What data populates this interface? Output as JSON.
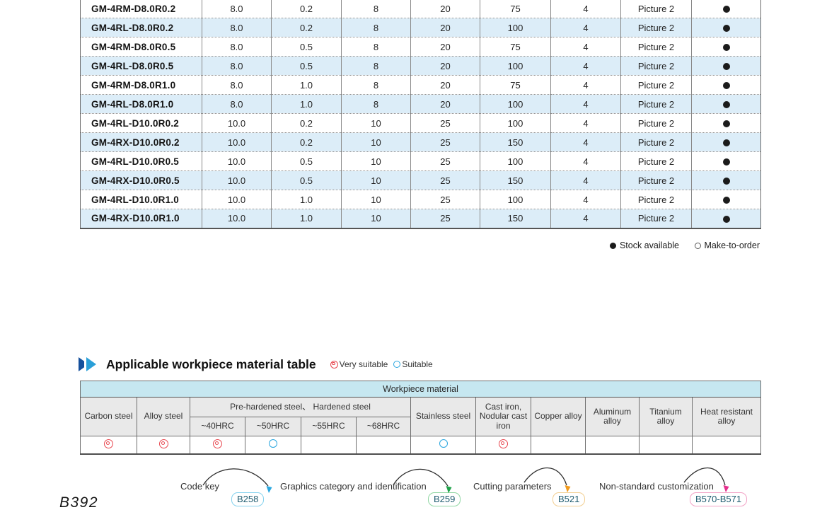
{
  "page_number": "B392",
  "product_table": {
    "rows": [
      {
        "model": "GM-4RM-D8.0R0.2",
        "values": [
          "8.0",
          "0.2",
          "8",
          "20",
          "75",
          "4",
          "Picture 2"
        ],
        "stock": "available"
      },
      {
        "model": "GM-4RL-D8.0R0.2",
        "values": [
          "8.0",
          "0.2",
          "8",
          "20",
          "100",
          "4",
          "Picture 2"
        ],
        "stock": "available"
      },
      {
        "model": "GM-4RM-D8.0R0.5",
        "values": [
          "8.0",
          "0.5",
          "8",
          "20",
          "75",
          "4",
          "Picture 2"
        ],
        "stock": "available"
      },
      {
        "model": "GM-4RL-D8.0R0.5",
        "values": [
          "8.0",
          "0.5",
          "8",
          "20",
          "100",
          "4",
          "Picture 2"
        ],
        "stock": "available"
      },
      {
        "model": "GM-4RM-D8.0R1.0",
        "values": [
          "8.0",
          "1.0",
          "8",
          "20",
          "75",
          "4",
          "Picture 2"
        ],
        "stock": "available"
      },
      {
        "model": "GM-4RL-D8.0R1.0",
        "values": [
          "8.0",
          "1.0",
          "8",
          "20",
          "100",
          "4",
          "Picture 2"
        ],
        "stock": "available"
      },
      {
        "model": "GM-4RL-D10.0R0.2",
        "values": [
          "10.0",
          "0.2",
          "10",
          "25",
          "100",
          "4",
          "Picture 2"
        ],
        "stock": "available"
      },
      {
        "model": "GM-4RX-D10.0R0.2",
        "values": [
          "10.0",
          "0.2",
          "10",
          "25",
          "150",
          "4",
          "Picture 2"
        ],
        "stock": "available"
      },
      {
        "model": "GM-4RL-D10.0R0.5",
        "values": [
          "10.0",
          "0.5",
          "10",
          "25",
          "100",
          "4",
          "Picture 2"
        ],
        "stock": "available"
      },
      {
        "model": "GM-4RX-D10.0R0.5",
        "values": [
          "10.0",
          "0.5",
          "10",
          "25",
          "150",
          "4",
          "Picture 2"
        ],
        "stock": "available"
      },
      {
        "model": "GM-4RL-D10.0R1.0",
        "values": [
          "10.0",
          "1.0",
          "10",
          "25",
          "100",
          "4",
          "Picture 2"
        ],
        "stock": "available"
      },
      {
        "model": "GM-4RX-D10.0R1.0",
        "values": [
          "10.0",
          "1.0",
          "10",
          "25",
          "150",
          "4",
          "Picture 2"
        ],
        "stock": "available"
      }
    ]
  },
  "stock_legend": {
    "available_label": "Stock available",
    "make_to_order_label": "Make-to-order"
  },
  "material_section": {
    "title": "Applicable workpiece material table",
    "very_suitable_label": "Very suitable",
    "suitable_label": "Suitable"
  },
  "workpiece_table": {
    "header": "Workpiece material",
    "columns_left": [
      "Carbon steel",
      "Alloy steel"
    ],
    "group_label": "Pre-hardened steel、 Hardened steel",
    "hrc": [
      "~40HRC",
      "~50HRC",
      "~55HRC",
      "~68HRC"
    ],
    "columns_right": [
      "Stainless steel",
      "Cast iron, Nodular cast iron",
      "Copper alloy",
      "Aluminum alloy",
      "Titanium alloy",
      "Heat resistant alloy"
    ],
    "ratings": [
      "very",
      "very",
      "very",
      "suitable",
      "none",
      "none",
      "suitable",
      "very",
      "none",
      "none",
      "none",
      "none"
    ]
  },
  "footer_links": [
    {
      "label": "Code key",
      "code": "B258",
      "border_color": "#85d2ee",
      "arrow_color": "#2ba8e0"
    },
    {
      "label": "Graphics category and identification",
      "code": "B259",
      "border_color": "#8fd6a2",
      "arrow_color": "#1fa24a"
    },
    {
      "label": "Cutting parameters",
      "code": "B521",
      "border_color": "#f2cf92",
      "arrow_color": "#f29b1d"
    },
    {
      "label": "Non-standard customization",
      "code": "B570-B571",
      "border_color": "#f2a3c6",
      "arrow_color": "#e5308e"
    }
  ],
  "colors": {
    "row_stripe": "#dcedf8",
    "table_header_cyan": "#c6e7f0",
    "table_header_gray": "#e9e9e9",
    "very_suitable": "#e8474f",
    "suitable": "#2aa6df",
    "heading_icon_dark": "#15509c",
    "heading_icon_light": "#2a9fd8"
  }
}
